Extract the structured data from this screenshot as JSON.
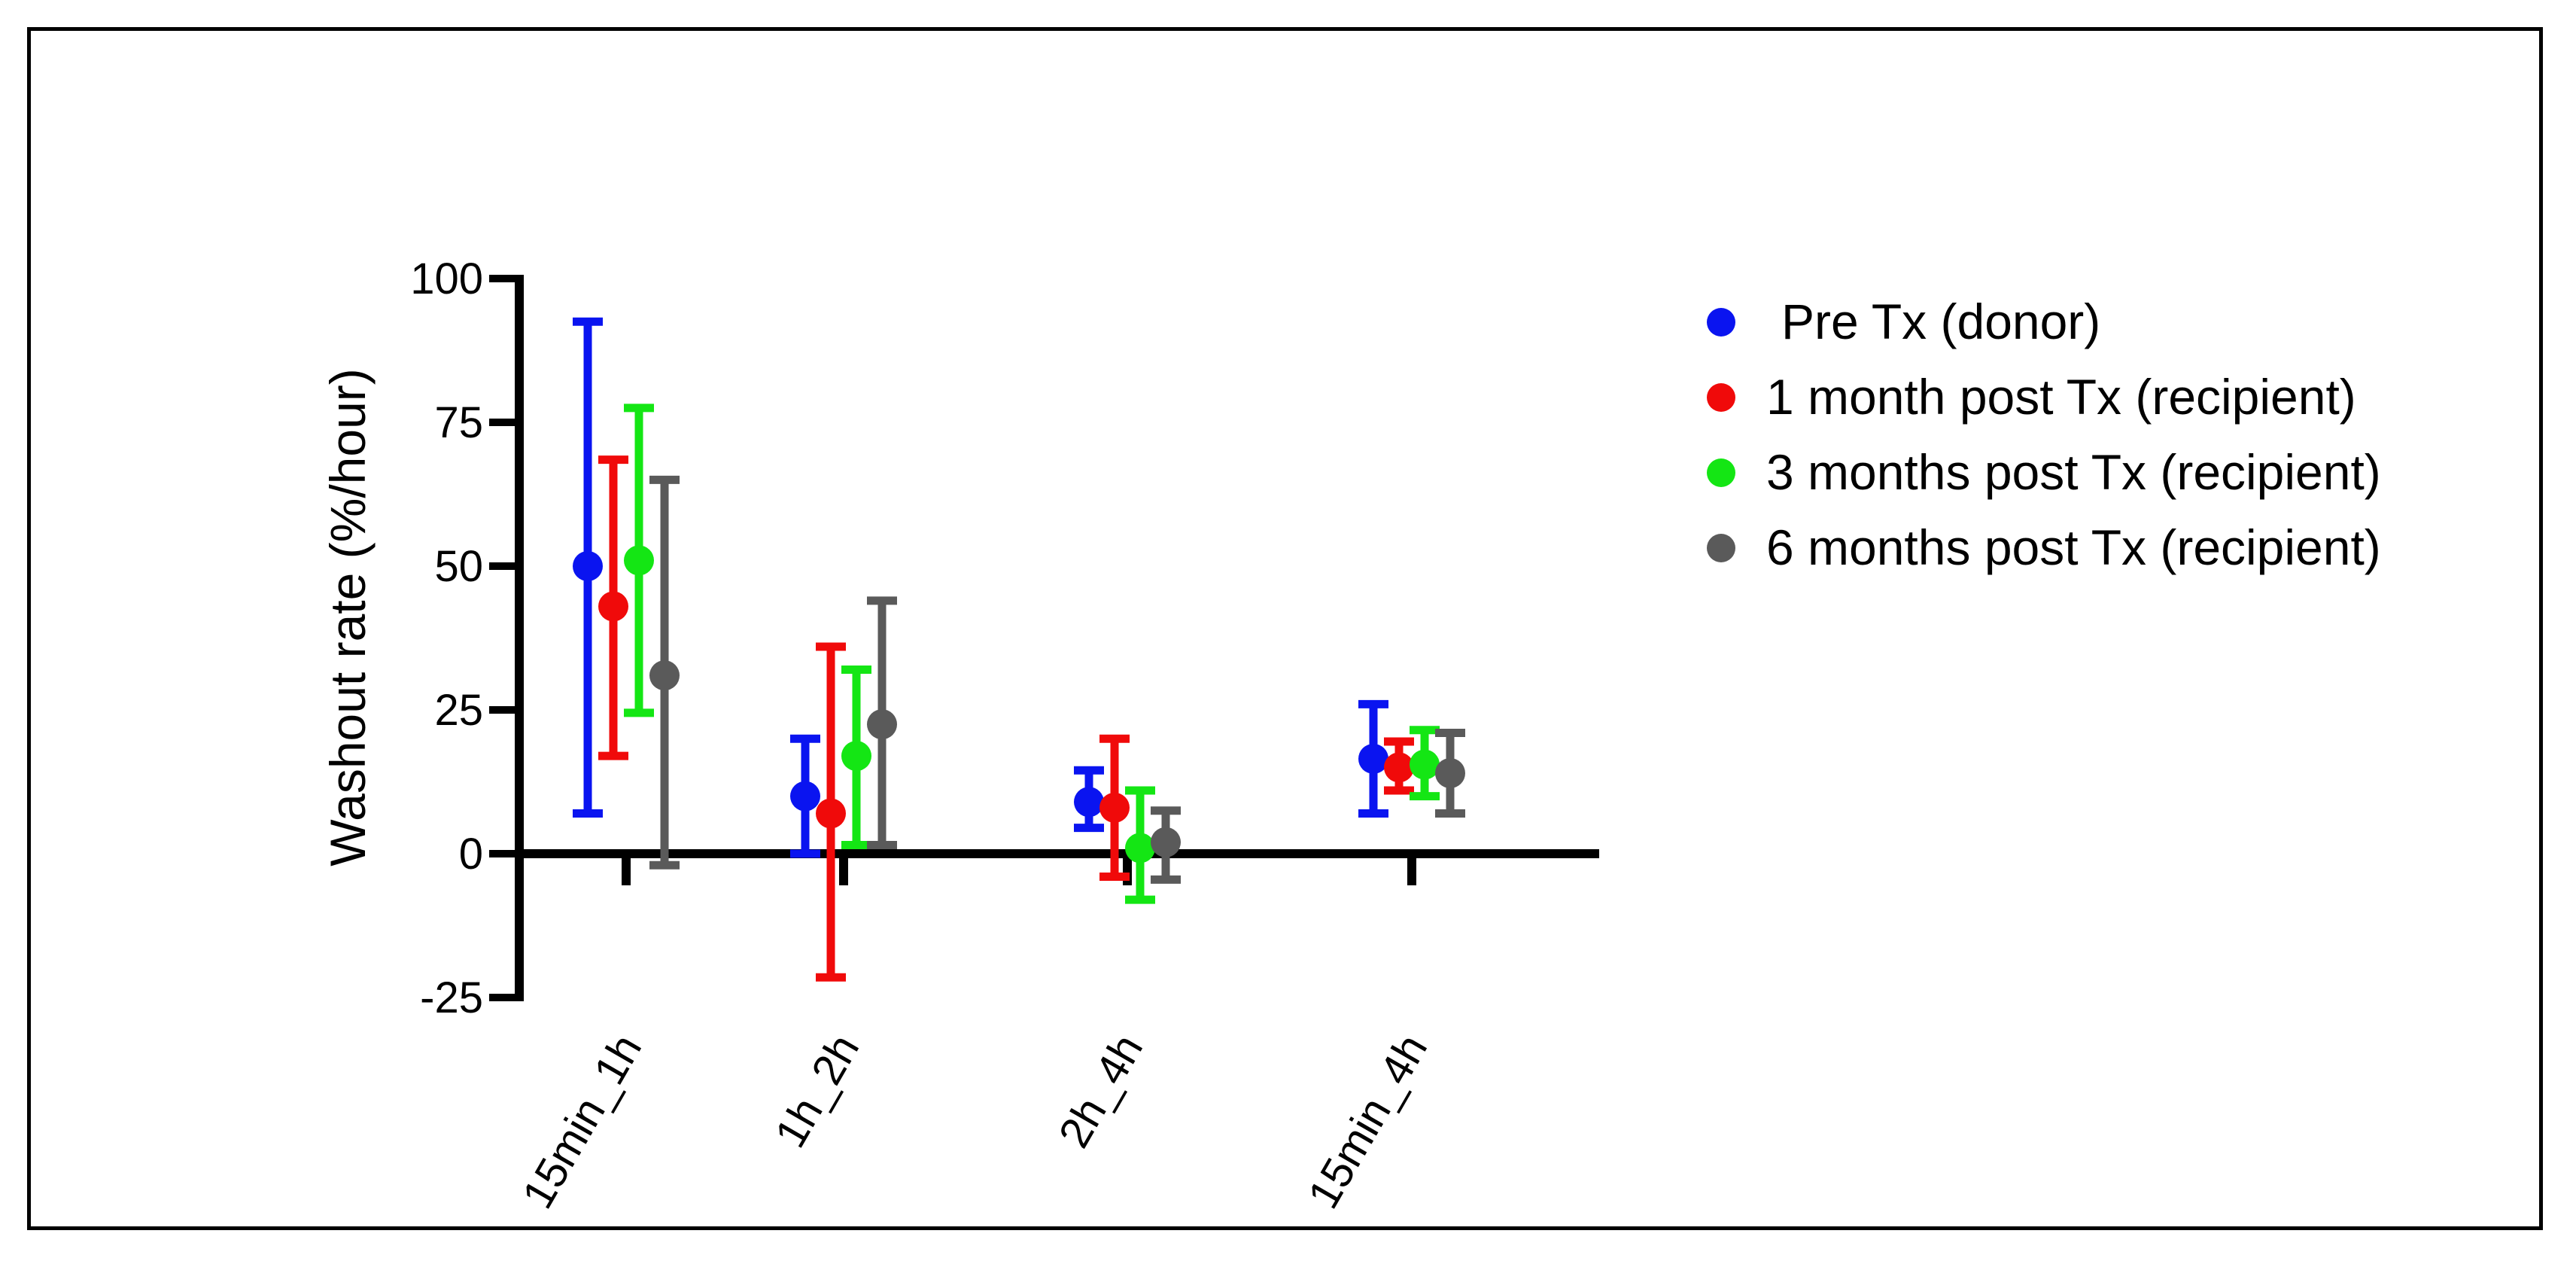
{
  "chart_data": {
    "type": "scatter",
    "subtype": "mean_with_error_bars",
    "title": "",
    "xlabel": "",
    "ylabel": "Washout rate (%/hour)",
    "ylim": [
      -25,
      100
    ],
    "yticks": [
      -25,
      0,
      25,
      50,
      75,
      100
    ],
    "ytick_labels": [
      "-25",
      "0",
      "25",
      "50",
      "75",
      "100"
    ],
    "categories": [
      "15min_1h",
      "1h_2h",
      "2h_4h",
      "15min_4h"
    ],
    "legend_position": "right",
    "series": [
      {
        "name": "Pre Tx (donor)",
        "color": "#0a14f0",
        "values": [
          50,
          10,
          9,
          16.5
        ],
        "err_low": [
          7,
          0,
          4.5,
          7
        ],
        "err_high": [
          92.5,
          20,
          14.5,
          26
        ]
      },
      {
        "name": "1 month post Tx (recipient)",
        "color": "#f00a0a",
        "values": [
          43,
          7,
          8,
          15
        ],
        "err_low": [
          17,
          -21.5,
          -4,
          11
        ],
        "err_high": [
          68.5,
          36,
          20,
          19.5
        ]
      },
      {
        "name": "3 months post Tx (recipient)",
        "color": "#14e614",
        "values": [
          51,
          17,
          1,
          15.5
        ],
        "err_low": [
          24.5,
          1.5,
          -8,
          10
        ],
        "err_high": [
          77.5,
          32,
          11,
          21.5
        ]
      },
      {
        "name": "6 months post Tx (recipient)",
        "color": "#5a5a5a",
        "values": [
          31,
          22.5,
          2,
          14
        ],
        "err_low": [
          -2,
          1.5,
          -4.5,
          7
        ],
        "err_high": [
          65,
          44,
          7.5,
          21
        ]
      }
    ]
  }
}
